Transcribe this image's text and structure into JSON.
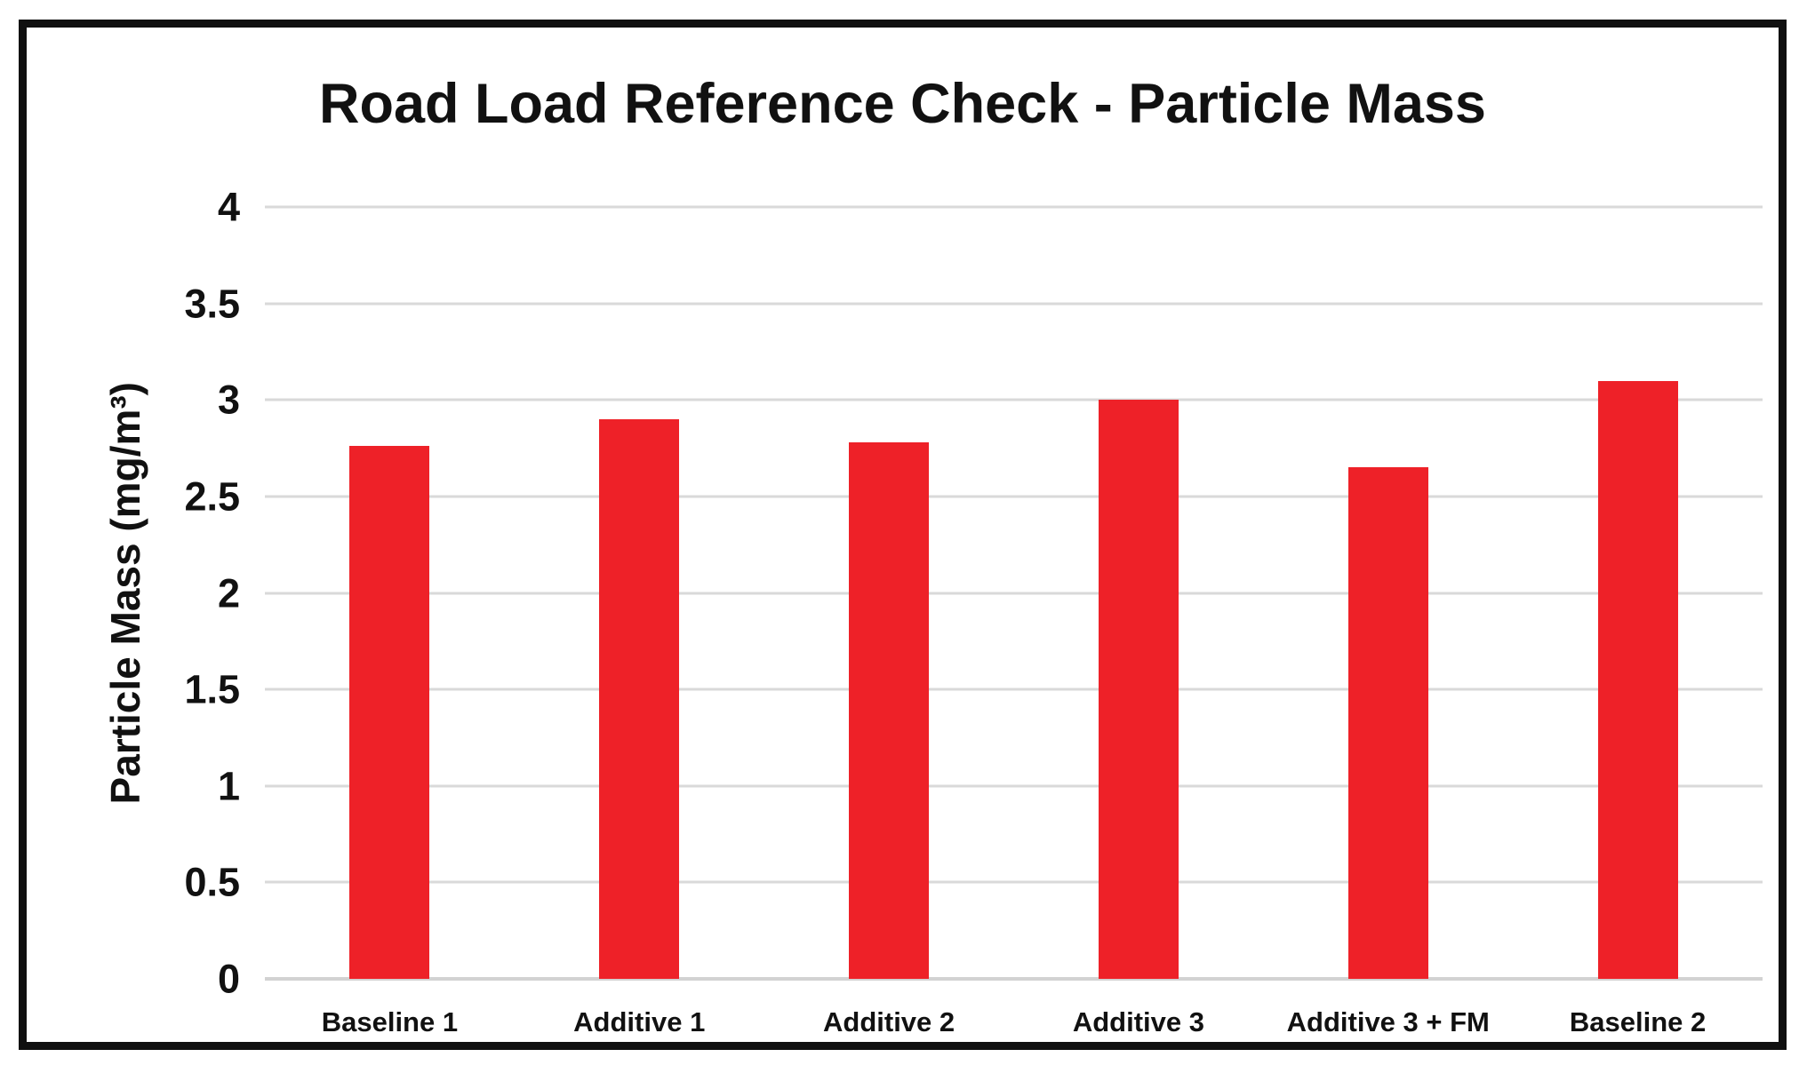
{
  "chart_data": {
    "type": "bar",
    "title": "Road Load Reference Check - Particle Mass",
    "xlabel": "",
    "ylabel": "Particle Mass (mg/m³)",
    "categories": [
      "Baseline 1",
      "Additive 1",
      "Additive 2",
      "Additive 3",
      "Additive 3 + FM",
      "Baseline 2"
    ],
    "values": [
      2.76,
      2.9,
      2.78,
      3.0,
      2.65,
      3.1
    ],
    "ylim": [
      0,
      4
    ],
    "ytick_step": 0.5,
    "ytick_labels": [
      "4",
      "3.5",
      "3",
      "2.5",
      "2",
      "1.5",
      "1",
      "0.5",
      "0"
    ],
    "grid": "horizontal",
    "legend": "none",
    "colors": {
      "bar": "#EE2128",
      "gridline": "#D9D9D9",
      "axis_line": "#D2D2D2",
      "text": "#111111",
      "frame_border": "#101010",
      "background": "#FFFFFF"
    }
  }
}
